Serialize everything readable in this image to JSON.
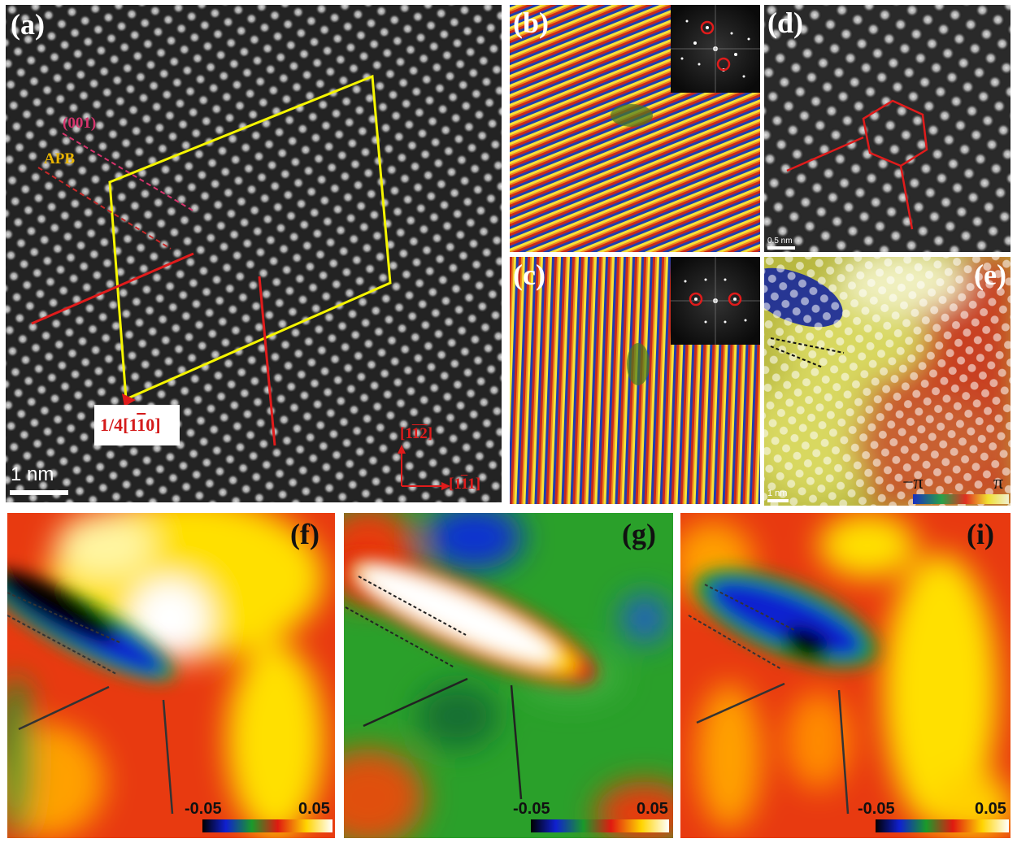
{
  "panels": {
    "a": {
      "label": "(a)",
      "scale_bar": "1 nm",
      "plane_label": "(001)",
      "apb_label": "APB",
      "burgers_label": "1/4[1̅1̅̅0]",
      "burgers_text": "1/4[1",
      "burgers_bar": "1",
      "burgers_end": "0]",
      "axis_up_pre": "[1",
      "axis_up_bar1": "1",
      "axis_up_bar2": "2",
      "axis_up_post": "]",
      "axis_right_pre": "[1",
      "axis_right_bar": "1",
      "axis_right_post": "1]",
      "colors": {
        "plane": "#d6336c",
        "apb": "#e8b400",
        "circuit": "#f5f500",
        "lines": "#e01b1b"
      }
    },
    "b": {
      "label": "(b)"
    },
    "c": {
      "label": "(c)"
    },
    "d": {
      "label": "(d)",
      "scale_bar": "0.5 nm"
    },
    "e": {
      "label": "(e)",
      "scale_bar": "1 nm",
      "cbar_min": "−π",
      "cbar_max": "π"
    },
    "f": {
      "label": "(f)",
      "cbar_min": "-0.05",
      "cbar_max": "0.05"
    },
    "g": {
      "label": "(g)",
      "cbar_min": "-0.05",
      "cbar_max": "0.05"
    },
    "i": {
      "label": "(i)",
      "cbar_min": "-0.05",
      "cbar_max": "0.05"
    }
  }
}
